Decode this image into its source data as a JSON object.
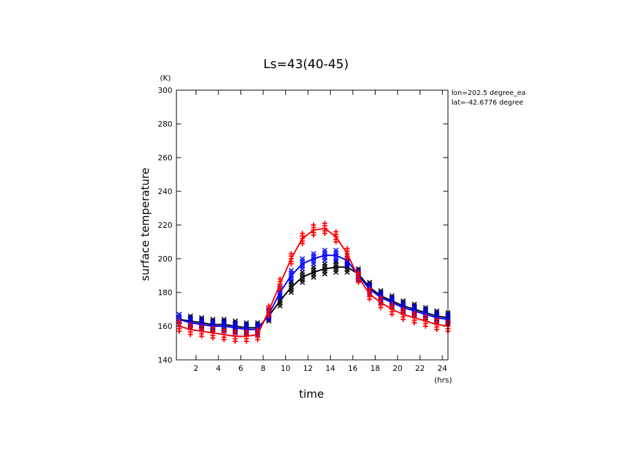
{
  "chart_data": {
    "type": "line",
    "title": "Ls=43(40-45)",
    "xlabel": "time",
    "ylabel": "surface temperature",
    "x_unit": "(hrs)",
    "y_unit": "(K)",
    "xlim": [
      0.25,
      24.5
    ],
    "ylim": [
      140,
      300
    ],
    "x_ticks": [
      2,
      4,
      6,
      8,
      10,
      12,
      14,
      16,
      18,
      20,
      22,
      24
    ],
    "y_ticks": [
      140,
      160,
      180,
      200,
      220,
      240,
      260,
      280,
      300
    ],
    "annotations": [
      "lon=202.5 degree_ea",
      "lat=-42.6776 degree"
    ],
    "x": [
      0.5,
      1.5,
      2.5,
      3.5,
      4.5,
      5.5,
      6.5,
      7.5,
      8.5,
      9.5,
      10.5,
      11.5,
      12.5,
      13.5,
      14.5,
      15.5,
      16.5,
      17.5,
      18.5,
      19.5,
      20.5,
      21.5,
      22.5,
      23.5,
      24.5
    ],
    "series": [
      {
        "color": "#000000",
        "marker": "x",
        "values": [
          164,
          163,
          162,
          161,
          161,
          160,
          159,
          159,
          166,
          175,
          183,
          189,
          192,
          194,
          195,
          195,
          191,
          183,
          178,
          175,
          172,
          170,
          168,
          166,
          165
        ]
      },
      {
        "color": "#0000ff",
        "marker": "x",
        "values": [
          164,
          162,
          161,
          160,
          160,
          159,
          158,
          158,
          167,
          180,
          190,
          197,
          200,
          202,
          202,
          199,
          190,
          182,
          177,
          174,
          171,
          169,
          167,
          165,
          164
        ]
      },
      {
        "color": "#ff0000",
        "marker": "+",
        "values": [
          160,
          158,
          157,
          156,
          155,
          154,
          154,
          155,
          169,
          185,
          200,
          212,
          217,
          218,
          213,
          203,
          189,
          179,
          174,
          170,
          167,
          165,
          163,
          161,
          160
        ]
      }
    ]
  }
}
